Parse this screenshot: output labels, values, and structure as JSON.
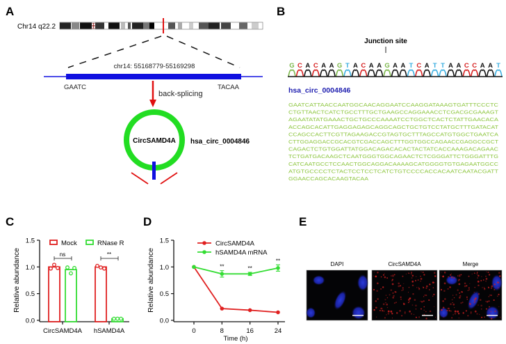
{
  "panels": {
    "A": {
      "label": "A",
      "chromosome": "Chr14 q22.2",
      "region": "chr14: 55168779-55169298",
      "left_seq": "GAATC",
      "right_seq": "TACAA",
      "arrow_label": "back-splicing",
      "circ_name": "CircSAMD4A",
      "circ_id": "hsa_circ_0004846",
      "colors": {
        "exon": "#1010e0",
        "circle": "#22dd22",
        "arrow": "#e01010"
      }
    },
    "B": {
      "label": "B",
      "junction_label": "Junction site",
      "trace_sequence": "GCACAAGTACAAGAATCATTAACCAAT",
      "base_colors": {
        "G": "#7ab648",
        "C": "#d62020",
        "A": "#111111",
        "T": "#3aaee0"
      },
      "circ_id": "hsa_circ_0004846",
      "sequence_lines": [
        "GAATCATTAACCAATGGCAACAGGAATCCAAGGATAAAGTGATTTCCCTC",
        "CTGTTAACTCATCTGCCTTTGCTGAAGCCAGGAAACCTCGACGCGAAAGT",
        "AGAATATATGAAACTGCTGCCCAAAATCCTGGCTCACTCTATTGAACACA",
        "ACCAGCACATTGAGGAGAGCAGGCAGCTGCTGTCCTATGCTTTGATACAT",
        "CCAGCCACTTCGTTAGAAGACCGTAGTGCTTTAGCCATGTGGCTGAATCA",
        "CTTGGAGGACCGCACGTCGACCAGCTTTGGTGGCCAGAACCGAGGCCGCT",
        "CAGACTCTGTGGATTATGGACAGACACACTACTATCACCAAAGACAGAAC",
        "TCTGATGACAAGCTCAATGGGTGGCAGAACTCTCGGGATTCTGGGATTTG",
        "CATCAATGCCTCCAACTGGCAGGACAAAAGCATGGGGTGTGAGAATGGCC",
        "ATGTGCCCCTCTACTCCTCCTCATCTGTCCCCACCACAATCAATACGATT",
        "GGAACCAGCACAAGTACAA"
      ]
    },
    "E": {
      "label": "E",
      "titles": [
        "DAPI",
        "CircSAMD4A",
        "Merge"
      ]
    }
  },
  "chart_data": [
    {
      "panel": "C",
      "type": "bar",
      "ylabel": "Relative abundance",
      "xlabel": "",
      "ylim": [
        0,
        1.5
      ],
      "yticks": [
        "0.0",
        "0.5",
        "1.0",
        "1.5"
      ],
      "categories": [
        "CircSAMD4A",
        "hSAMD4A"
      ],
      "series": [
        {
          "name": "Mock",
          "color": "#e02020",
          "values": [
            1.0,
            1.0
          ],
          "points": [
            [
              0.97,
              1.04,
              0.98
            ],
            [
              1.02,
              0.99,
              0.97
            ]
          ]
        },
        {
          "name": "RNase R",
          "color": "#33dd33",
          "values": [
            0.95,
            0.03
          ],
          "points": [
            [
              0.99,
              0.88,
              0.98
            ],
            [
              0.03,
              0.03,
              0.03
            ]
          ]
        }
      ],
      "significance": [
        "ns",
        "**"
      ],
      "legend": "top"
    },
    {
      "panel": "D",
      "type": "line",
      "ylabel": "Relative abundance",
      "xlabel": "Time (h)",
      "ylim": [
        0,
        1.5
      ],
      "yticks": [
        "0.0",
        "0.5",
        "1.0",
        "1.5"
      ],
      "x": [
        0,
        8,
        16,
        24
      ],
      "xticks": [
        "0",
        "8",
        "16",
        "24"
      ],
      "series": [
        {
          "name": "CircSAMD4A",
          "color": "#e02020",
          "values": [
            1.0,
            0.22,
            0.19,
            0.15
          ]
        },
        {
          "name": "hSAMD4A mRNA",
          "color": "#33dd33",
          "values": [
            1.0,
            0.87,
            0.87,
            0.98
          ],
          "errors": [
            0,
            0.06,
            0.03,
            0.06
          ]
        }
      ],
      "significance": [
        "",
        "**",
        "**",
        "**"
      ],
      "legend": "top"
    }
  ]
}
